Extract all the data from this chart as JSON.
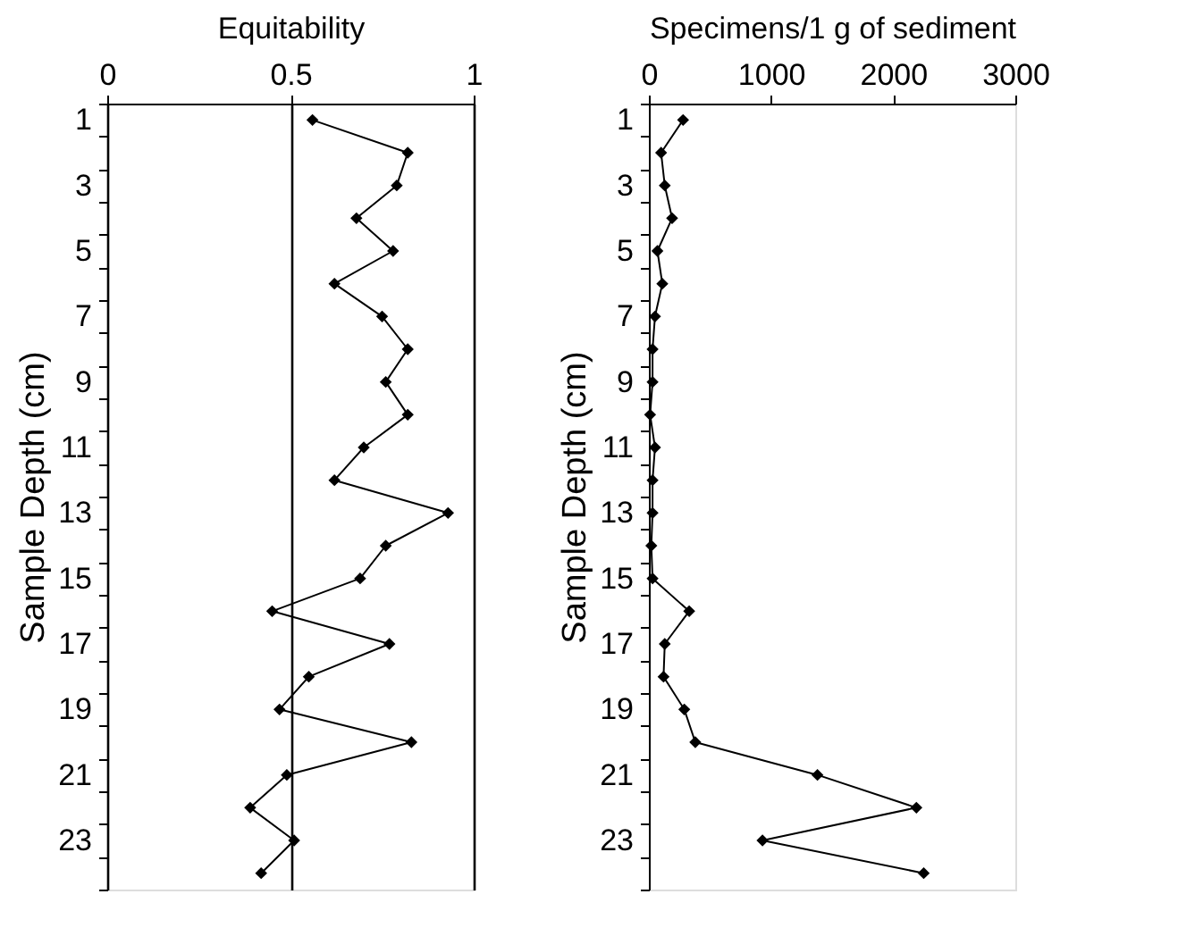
{
  "chart_data": [
    {
      "type": "line",
      "orientation": "horizontal",
      "xlabel": "Equitability",
      "ylabel": "Sample Depth (cm)",
      "categories": [
        "1",
        null,
        "3",
        null,
        "5",
        null,
        "7",
        null,
        "9",
        null,
        "11",
        null,
        "13",
        null,
        "15",
        null,
        "17",
        null,
        "19",
        null,
        "21",
        null,
        "23",
        null
      ],
      "series": [
        {
          "color": "#000000",
          "values": [
            0.56,
            0.82,
            0.79,
            0.68,
            0.78,
            0.62,
            0.75,
            0.82,
            0.76,
            0.82,
            0.7,
            0.62,
            0.93,
            0.76,
            0.69,
            0.45,
            0.77,
            0.55,
            0.47,
            0.83,
            0.49,
            0.39,
            0.51,
            0.42
          ]
        }
      ],
      "xlim": [
        0,
        1
      ],
      "xticks": [
        0,
        0.5,
        1
      ],
      "grid": "x",
      "marker": "diamond",
      "line_style": "solid"
    },
    {
      "type": "line",
      "orientation": "horizontal",
      "xlabel": "Specimens/1 g of sediment",
      "ylabel": "Sample Depth (cm)",
      "categories": [
        "1",
        null,
        "3",
        null,
        "5",
        null,
        "7",
        null,
        "9",
        null,
        "11",
        null,
        "13",
        null,
        "15",
        null,
        "17",
        null,
        "19",
        null,
        "21",
        null,
        "23",
        null
      ],
      "series": [
        {
          "color": "#000000",
          "values": [
            280,
            100,
            130,
            190,
            70,
            110,
            50,
            30,
            30,
            10,
            50,
            30,
            30,
            20,
            30,
            330,
            130,
            120,
            290,
            380,
            1380,
            2190,
            930,
            2250
          ]
        }
      ],
      "xlim": [
        0,
        3000
      ],
      "xticks": [
        0,
        1000,
        2000,
        3000
      ],
      "marker": "diamond",
      "line_style": "solid"
    }
  ]
}
